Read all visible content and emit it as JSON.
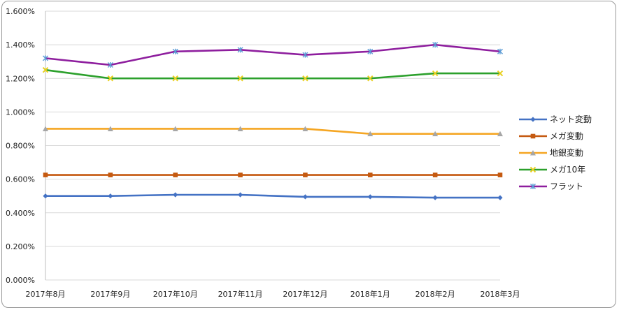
{
  "chart_data": {
    "type": "line",
    "categories": [
      "2017年8月",
      "2017年9月",
      "2017年10月",
      "2017年11月",
      "2017年12月",
      "2018年1月",
      "2018年2月",
      "2018年3月"
    ],
    "ylim": [
      0,
      1.6
    ],
    "yticks": [
      0,
      0.2,
      0.4,
      0.6,
      0.8,
      1.0,
      1.2,
      1.4,
      1.6
    ],
    "ytick_labels": [
      "0.000%",
      "0.200%",
      "0.400%",
      "0.600%",
      "0.800%",
      "1.000%",
      "1.200%",
      "1.400%",
      "1.600%"
    ],
    "grid": true,
    "legend_position": "right",
    "series": [
      {
        "name": "ネット変動",
        "color": "#4472C4",
        "marker": "diamond",
        "values": [
          0.5,
          0.5,
          0.507,
          0.507,
          0.495,
          0.495,
          0.49,
          0.49
        ]
      },
      {
        "name": "メガ変動",
        "color": "#C55A11",
        "marker": "square",
        "values": [
          0.625,
          0.625,
          0.625,
          0.625,
          0.625,
          0.625,
          0.625,
          0.625
        ]
      },
      {
        "name": "地銀変動",
        "color": "#F5A623",
        "marker": "triangle",
        "values": [
          0.9,
          0.9,
          0.9,
          0.9,
          0.9,
          0.87,
          0.87,
          0.87
        ]
      },
      {
        "name": "メガ10年",
        "color": "#2CA02C",
        "marker": "x",
        "values": [
          1.25,
          1.2,
          1.2,
          1.2,
          1.2,
          1.2,
          1.23,
          1.23
        ]
      },
      {
        "name": "フラット",
        "color": "#8E1E9E",
        "marker": "star",
        "values": [
          1.32,
          1.28,
          1.36,
          1.37,
          1.34,
          1.36,
          1.4,
          1.36
        ]
      }
    ]
  }
}
